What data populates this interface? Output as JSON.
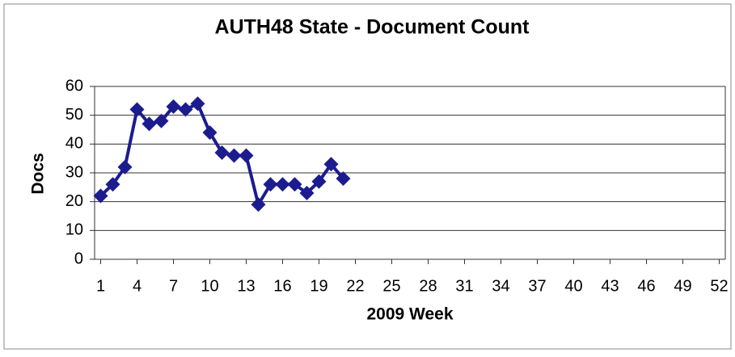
{
  "chart_data": {
    "type": "line",
    "title": "AUTH48 State - Document Count",
    "xlabel": "2009 Week",
    "ylabel": "Docs",
    "x": [
      1,
      2,
      3,
      4,
      5,
      6,
      7,
      8,
      9,
      10,
      11,
      12,
      13,
      14,
      15,
      16,
      17,
      18,
      19,
      20,
      21
    ],
    "series": [
      {
        "name": "Docs",
        "color": "#1c1c8f",
        "values": [
          22,
          26,
          32,
          52,
          47,
          48,
          53,
          52,
          54,
          44,
          37,
          36,
          36,
          19,
          26,
          26,
          26,
          23,
          27,
          33,
          28
        ]
      }
    ],
    "xlim": [
      0.5,
      52.5
    ],
    "xticks": [
      1,
      4,
      7,
      10,
      13,
      16,
      19,
      22,
      25,
      28,
      31,
      34,
      37,
      40,
      43,
      46,
      49,
      52
    ],
    "ylim": [
      0,
      60
    ],
    "yticks": [
      0,
      10,
      20,
      30,
      40,
      50,
      60
    ],
    "grid": true
  }
}
